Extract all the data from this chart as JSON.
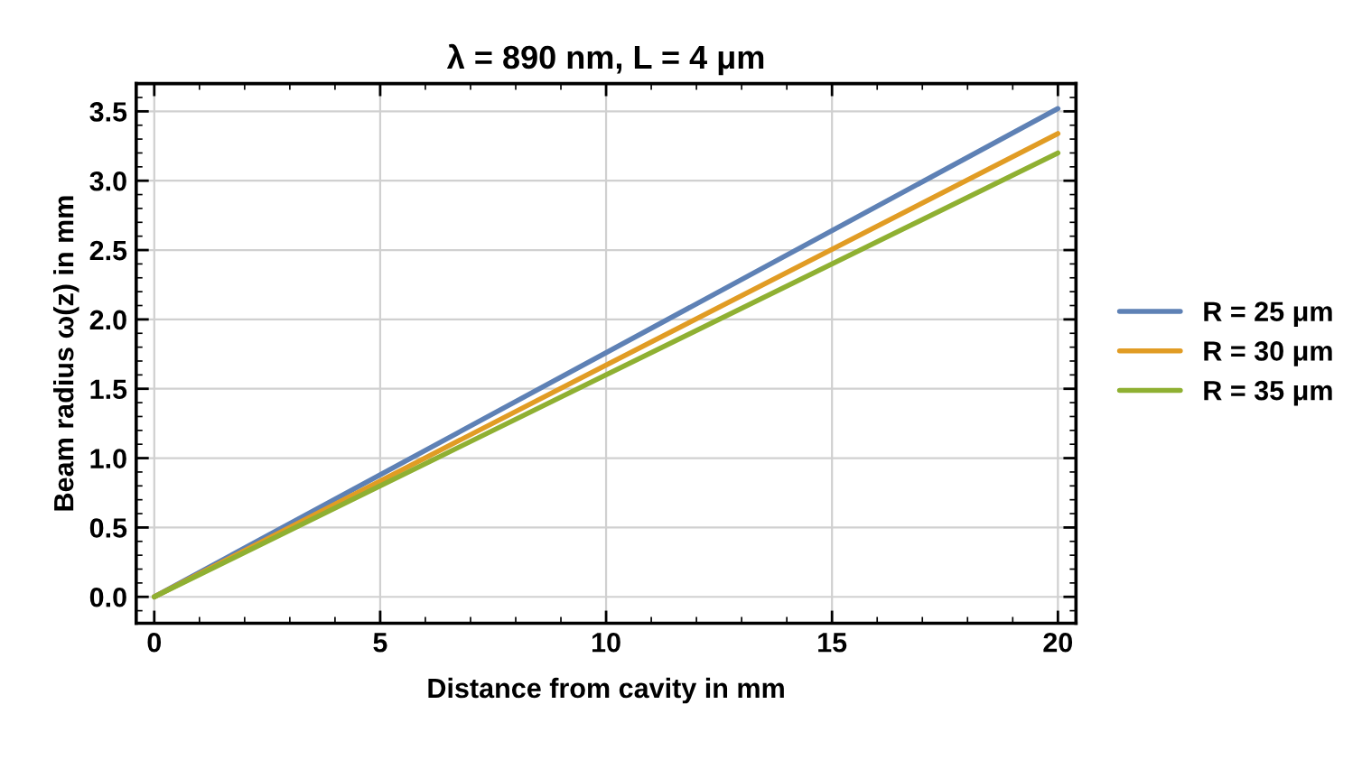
{
  "chart_data": {
    "type": "line",
    "title": "λ = 890 nm, L = 4 μm",
    "xlabel": "Distance from cavity in mm",
    "ylabel": "Beam radius ω(z) in mm",
    "x": [
      0,
      10,
      20
    ],
    "series": [
      {
        "name": "R = 25 μm",
        "color": "#5e81b5",
        "values": [
          0,
          1.76,
          3.52
        ]
      },
      {
        "name": "R = 30 μm",
        "color": "#e19c24",
        "values": [
          0,
          1.67,
          3.34
        ]
      },
      {
        "name": "R = 35 μm",
        "color": "#8fb032",
        "values": [
          0,
          1.6,
          3.2
        ]
      }
    ],
    "xlim": [
      -0.4,
      20.4
    ],
    "ylim": [
      -0.19,
      3.7
    ],
    "xticks": [
      0,
      5,
      10,
      15,
      20
    ],
    "yticks": [
      {
        "value": 0,
        "label": "0.0"
      },
      0.5,
      {
        "value": 1,
        "label": "1.0"
      },
      1.5,
      {
        "value": 2,
        "label": "2.0"
      },
      2.5,
      {
        "value": 3,
        "label": "3.0"
      },
      3.5
    ],
    "grid": true,
    "legend": "right",
    "marker": "none",
    "line_style": "solid"
  }
}
